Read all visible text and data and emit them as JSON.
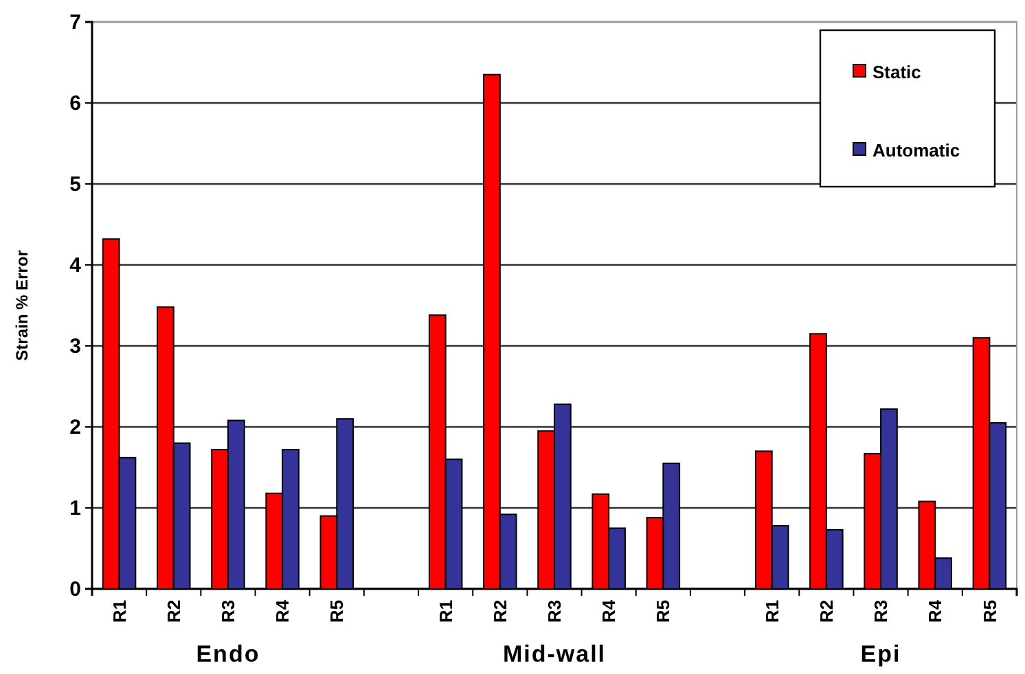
{
  "chart_data": {
    "type": "bar",
    "ylabel": "Strain % Error",
    "categories": [
      "R1",
      "R2",
      "R3",
      "R4",
      "R5",
      null,
      "R1",
      "R2",
      "R3",
      "R4",
      "R5",
      null,
      "R1",
      "R2",
      "R3",
      "R4",
      "R5"
    ],
    "series": [
      {
        "name": "Static",
        "color": "#ff0000",
        "values": [
          4.32,
          3.48,
          1.72,
          1.18,
          0.9,
          null,
          3.38,
          6.35,
          1.95,
          1.17,
          0.88,
          null,
          1.7,
          3.15,
          1.67,
          1.08,
          3.1
        ]
      },
      {
        "name": "Automatic",
        "color": "#333399",
        "values": [
          1.62,
          1.8,
          2.08,
          1.72,
          2.1,
          null,
          1.6,
          0.92,
          2.28,
          0.75,
          1.55,
          null,
          0.78,
          0.73,
          2.22,
          0.38,
          2.05
        ]
      }
    ],
    "annotations": [
      "Endo",
      "Mid-wall",
      "Epi"
    ],
    "ylim": [
      0,
      7
    ],
    "yticks": [
      0,
      1,
      2,
      3,
      4,
      5,
      6,
      7
    ],
    "grid": "y",
    "legend": "top right"
  }
}
